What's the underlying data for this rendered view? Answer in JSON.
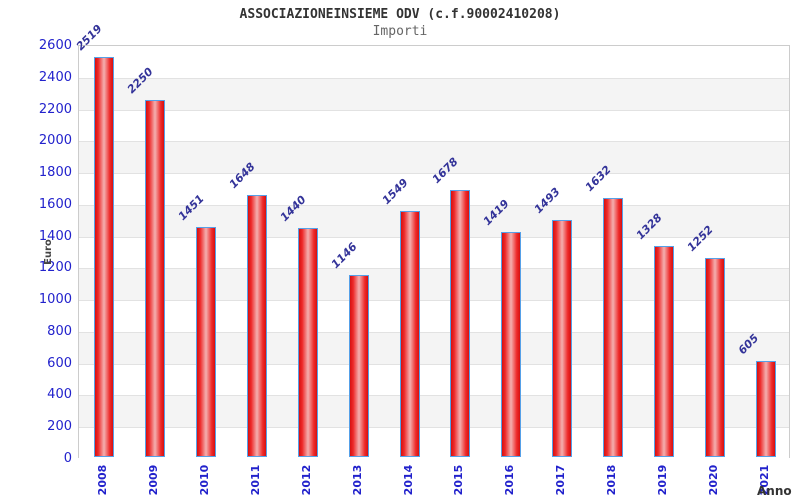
{
  "chart_data": {
    "type": "bar",
    "title": "ASSOCIAZIONEINSIEME ODV (c.f.90002410208)",
    "subtitle": "Importi",
    "xlabel": "Anno",
    "ylabel": "Euro",
    "categories": [
      "2008",
      "2009",
      "2010",
      "2011",
      "2012",
      "2013",
      "2014",
      "2015",
      "2016",
      "2017",
      "2018",
      "2019",
      "2020",
      "2021"
    ],
    "values": [
      2519,
      2250,
      1451,
      1648,
      1440,
      1146,
      1549,
      1678,
      1419,
      1493,
      1632,
      1328,
      1252,
      605
    ],
    "ylim": [
      0,
      2600
    ],
    "ytick_step": 200,
    "yticks": [
      0,
      200,
      400,
      600,
      800,
      1000,
      1200,
      1400,
      1600,
      1800,
      2000,
      2200,
      2400,
      2600
    ],
    "grid": "horizontal-bands-alternating",
    "legend": null,
    "colors": {
      "bar_edge_red": "#d61010",
      "bar_mid_red": "#ee2a2a",
      "bar_center_pink": "#f3a8a8",
      "bar_border_blue": "#55a0e8",
      "tick_label_blue": "#2222cc",
      "value_label_navy": "#333399",
      "band_gray": "#f4f4f4",
      "band_white": "#ffffff",
      "gridline_gray": "#e2e2e2",
      "plot_border": "#cccccc",
      "title_color": "#333333",
      "subtitle_color": "#666666",
      "axis_title_color": "#444444"
    }
  }
}
